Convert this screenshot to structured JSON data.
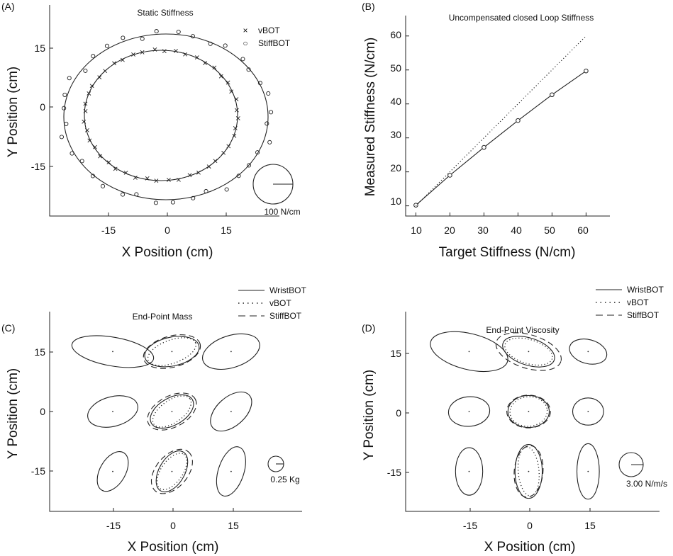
{
  "panels": {
    "A": {
      "label": "(A)",
      "title": "Static Stiffness",
      "xlabel": "X Position (cm)",
      "ylabel": "Y Position (cm)",
      "x_ticks": [
        "-15",
        "0",
        "15"
      ],
      "y_ticks": [
        "15",
        "0",
        "-15"
      ],
      "legend": [
        {
          "marker": "×",
          "label": "vBOT"
        },
        {
          "marker": "○",
          "label": "StiffBOT"
        }
      ],
      "scale_label": "100 N/cm"
    },
    "B": {
      "label": "(B)",
      "title": "Uncompensated closed Loop Stiffness",
      "xlabel": "Target Stiffness (N/cm)",
      "ylabel": "Measured Stiffness  (N/cm)",
      "x_ticks": [
        "10",
        "20",
        "30",
        "40",
        "50",
        "60"
      ],
      "y_ticks": [
        "10",
        "20",
        "30",
        "40",
        "50",
        "60"
      ]
    },
    "C": {
      "label": "(C)",
      "title": "End-Point Mass",
      "xlabel": "X Position (cm)",
      "ylabel": "Y Position (cm)",
      "x_ticks": [
        "-15",
        "0",
        "15"
      ],
      "y_ticks": [
        "15",
        "0",
        "-15"
      ],
      "legend": [
        "WristBOT",
        "vBOT",
        "StiffBOT"
      ],
      "scale_label": "0.25 Kg"
    },
    "D": {
      "label": "(D)",
      "title": "End-Point Viscosity",
      "xlabel": "X Position (cm)",
      "ylabel": "Y Position (cm)",
      "x_ticks": [
        "-15",
        "0",
        "15"
      ],
      "y_ticks": [
        "15",
        "0",
        "-15"
      ],
      "legend": [
        "WristBOT",
        "vBOT",
        "StiffBOT"
      ],
      "scale_label": "3.00 N/m/s"
    }
  },
  "chart_data": [
    {
      "type": "scatter",
      "panel": "A",
      "title": "Static Stiffness",
      "xlabel": "X Position (cm)",
      "ylabel": "Y Position (cm)",
      "xlim": [
        -29,
        32
      ],
      "ylim": [
        -27,
        22
      ],
      "series": [
        {
          "name": "vBOT",
          "marker": "x",
          "ellipse_fit": {
            "cx": -1.6,
            "cy": -2.2,
            "rx": 19.5,
            "ry": 16.5
          }
        },
        {
          "name": "StiffBOT",
          "marker": "o",
          "ellipse_fit": {
            "cx": -0.3,
            "cy": -2.5,
            "rx": 26.0,
            "ry": 21.0
          }
        }
      ],
      "scale_bar": "100 N/cm"
    },
    {
      "type": "line",
      "panel": "B",
      "title": "Uncompensated closed Loop Stiffness",
      "xlabel": "Target Stiffness (N/cm)",
      "ylabel": "Measured Stiffness  (N/cm)",
      "xlim": [
        7,
        67
      ],
      "ylim": [
        7,
        66
      ],
      "x": [
        10,
        20,
        30,
        40,
        50,
        60
      ],
      "series": [
        {
          "name": "",
          "style": "solid-circles",
          "values": [
            10.2,
            19.0,
            27.2,
            35.1,
            42.7,
            49.7
          ]
        },
        {
          "name": "",
          "style": "dotted",
          "values": [
            10,
            20,
            30,
            40,
            50,
            60
          ]
        }
      ]
    },
    {
      "type": "scatter",
      "panel": "C",
      "title": "End-Point Mass",
      "xlabel": "X Position (cm)",
      "ylabel": "Y Position (cm)",
      "xlim": [
        -31,
        33
      ],
      "ylim": [
        -25,
        25
      ],
      "series": [
        {
          "name": "WristBOT",
          "style": "solid",
          "ellipses": [
            {
              "cx": -15,
              "cy": 15,
              "rx": 10.5,
              "ry": 3.6,
              "rot": -10
            },
            {
              "cx": 0,
              "cy": 15,
              "rx": 7.0,
              "ry": 3.6,
              "rot": 12
            },
            {
              "cx": 15,
              "cy": 15,
              "rx": 7.5,
              "ry": 4.0,
              "rot": 18
            },
            {
              "cx": -15,
              "cy": 0,
              "rx": 6.5,
              "ry": 3.7,
              "rot": 15
            },
            {
              "cx": 0,
              "cy": 0,
              "rx": 6.0,
              "ry": 3.4,
              "rot": 30
            },
            {
              "cx": 15,
              "cy": 0,
              "rx": 6.2,
              "ry": 3.6,
              "rot": 42
            },
            {
              "cx": -15,
              "cy": -15,
              "rx": 5.5,
              "ry": 3.2,
              "rot": 60
            },
            {
              "cx": 0,
              "cy": -15,
              "rx": 5.7,
              "ry": 3.2,
              "rot": 60
            },
            {
              "cx": 15,
              "cy": -15,
              "rx": 6.5,
              "ry": 3.2,
              "rot": 72
            }
          ]
        },
        {
          "name": "vBOT",
          "style": "dotted",
          "ellipses": [
            {
              "cx": 0,
              "cy": 15,
              "rx": 6.4,
              "ry": 2.9,
              "rot": 20
            },
            {
              "cx": 0,
              "cy": 0,
              "rx": 5.6,
              "ry": 2.8,
              "rot": 35
            },
            {
              "cx": 0,
              "cy": -15,
              "rx": 5.3,
              "ry": 2.7,
              "rot": 55
            }
          ]
        },
        {
          "name": "StiffBOT",
          "style": "dashed",
          "ellipses": [
            {
              "cx": 0,
              "cy": 15,
              "rx": 7.4,
              "ry": 3.9,
              "rot": 15
            },
            {
              "cx": 0,
              "cy": 0,
              "rx": 6.7,
              "ry": 3.9,
              "rot": 28
            },
            {
              "cx": 0,
              "cy": -15,
              "rx": 6.5,
              "ry": 4.0,
              "rot": 50
            }
          ]
        }
      ],
      "scale_bar": "0.25 Kg"
    },
    {
      "type": "scatter",
      "panel": "D",
      "title": "End-Point Viscosity",
      "xlabel": "X Position (cm)",
      "ylabel": "Y Position (cm)",
      "xlim": [
        -31,
        33
      ],
      "ylim": [
        -25,
        25
      ],
      "series": [
        {
          "name": "WristBOT",
          "style": "solid",
          "ellipses": [
            {
              "cx": -15,
              "cy": 15,
              "rx": 10.0,
              "ry": 4.5,
              "rot": -14
            },
            {
              "cx": 0,
              "cy": 15,
              "rx": 6.8,
              "ry": 3.4,
              "rot": -18
            },
            {
              "cx": 15,
              "cy": 15,
              "rx": 4.8,
              "ry": 3.0,
              "rot": -15
            },
            {
              "cx": -15,
              "cy": 0,
              "rx": 5.2,
              "ry": 3.7,
              "rot": 5
            },
            {
              "cx": 0,
              "cy": 0,
              "rx": 5.2,
              "ry": 4.0,
              "rot": 0
            },
            {
              "cx": 15,
              "cy": 0,
              "rx": 3.9,
              "ry": 3.4,
              "rot": 0
            },
            {
              "cx": -15,
              "cy": -15,
              "rx": 6.0,
              "ry": 3.4,
              "rot": 90
            },
            {
              "cx": 0,
              "cy": -15,
              "rx": 6.8,
              "ry": 3.4,
              "rot": 90
            },
            {
              "cx": 15,
              "cy": -15,
              "rx": 7.0,
              "ry": 2.8,
              "rot": 90
            }
          ]
        },
        {
          "name": "vBOT",
          "style": "dotted",
          "ellipses": [
            {
              "cx": 0,
              "cy": 15,
              "rx": 6.2,
              "ry": 3.0,
              "rot": -17
            },
            {
              "cx": 0,
              "cy": 0,
              "rx": 4.7,
              "ry": 3.7,
              "rot": 5
            },
            {
              "cx": 0,
              "cy": -15,
              "rx": 6.2,
              "ry": 2.6,
              "rot": 95
            }
          ]
        },
        {
          "name": "StiffBOT",
          "style": "dashed",
          "ellipses": [
            {
              "cx": 0,
              "cy": 15,
              "rx": 8.5,
              "ry": 4.2,
              "rot": -17
            },
            {
              "cx": 0,
              "cy": 0,
              "rx": 5.5,
              "ry": 4.1,
              "rot": 0
            },
            {
              "cx": 0,
              "cy": -15,
              "rx": 6.5,
              "ry": 3.6,
              "rot": 85
            }
          ]
        }
      ],
      "scale_bar": "3.00 N/m/s"
    }
  ]
}
